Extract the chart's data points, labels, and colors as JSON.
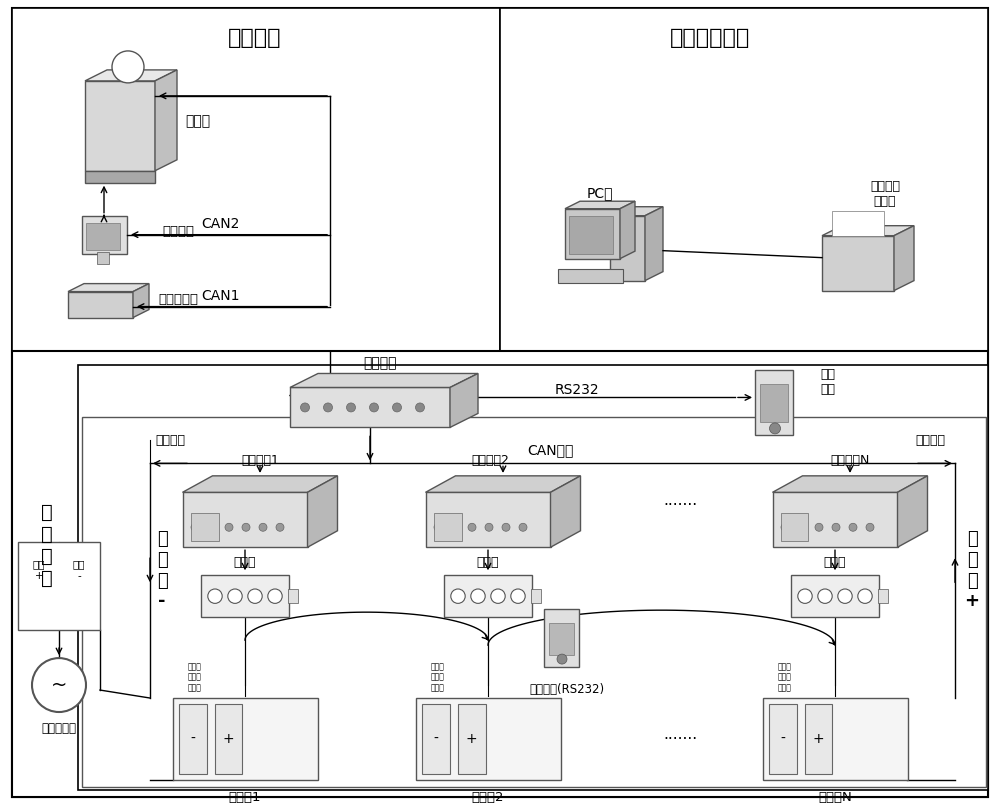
{
  "bg_color": "#ffffff",
  "top_left_label": "输出接口",
  "top_right_label": "离线数据处理",
  "left_section_label": "电\n池\n系\n统",
  "charger_label": "充电机",
  "vehicle_instrument_label": "车载仪表",
  "vehicle_controller_label": "车辆控制器",
  "can2_label": "CAN2",
  "can1_label": "CAN1",
  "pc_label": "PC机",
  "printer_label": "统计和报\n表打印",
  "main_module_label": "主控模块",
  "rs232_label": "RS232",
  "handheld_label": "手持\n设备",
  "current_detect_label": "电流检测",
  "insulation_detect_label": "绝缘检测",
  "can_bus_label": "CAN总线",
  "detect_module1_label": "检测模块1",
  "detect_module2_label": "检测模块2……",
  "detect_moduleN_label": "检测模块N",
  "terminal1_label": "端子排",
  "terminal2_label": "端子排",
  "terminalN_label": "端子排",
  "battery_group_minus_label": "电\n池\n组\n-",
  "battery_group_plus_label": "电\n池\n组\n+",
  "battery_box1_label": "电池箱1",
  "battery_box2_label": "电池箱2",
  "battery_boxN_label": "电池箱N",
  "current_sensor_label": "电流传感器",
  "current_plus_label": "电流\n+",
  "current_minus_label": "电流\n-",
  "handheld_rs232_label": "手持设备(RS232)",
  "wire_labels": "电温风\n压度机\n线线线",
  "dots_h": "……",
  "dots_mid": "·······"
}
